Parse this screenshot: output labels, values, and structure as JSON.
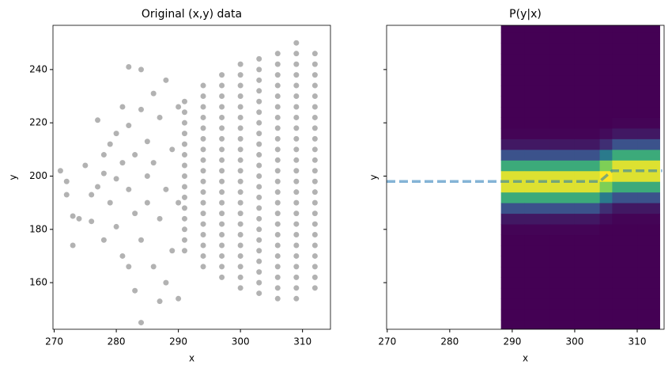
{
  "chart_data": [
    {
      "type": "scatter",
      "title": "Original (x,y) data",
      "x_label": "x",
      "y_label": "y",
      "color": "#000000",
      "alpha": 0.3,
      "xlim": [
        269.8,
        314.5
      ],
      "ylim": [
        142.5,
        256.6
      ],
      "xticks": [
        270,
        280,
        290,
        300,
        310
      ],
      "yticks": [
        160,
        180,
        200,
        220,
        240
      ],
      "x": [
        271,
        272,
        272,
        273,
        273,
        274,
        275,
        276,
        276,
        277,
        277,
        278,
        278,
        278,
        279,
        279,
        280,
        280,
        280,
        281,
        281,
        281,
        282,
        282,
        282,
        282,
        283,
        283,
        283,
        284,
        284,
        284,
        284,
        285,
        285,
        285,
        286,
        286,
        286,
        287,
        287,
        287,
        288,
        288,
        288,
        289,
        289,
        290,
        290,
        290,
        291,
        291,
        291,
        291,
        291,
        291,
        291,
        291,
        291,
        291,
        291,
        291,
        291,
        291,
        291,
        294,
        294,
        294,
        294,
        294,
        294,
        294,
        294,
        294,
        294,
        294,
        294,
        294,
        294,
        294,
        294,
        294,
        294,
        297,
        297,
        297,
        297,
        297,
        297,
        297,
        297,
        297,
        297,
        297,
        297,
        297,
        297,
        297,
        297,
        297,
        297,
        297,
        297,
        300,
        300,
        300,
        300,
        300,
        300,
        300,
        300,
        300,
        300,
        300,
        300,
        300,
        300,
        300,
        300,
        300,
        300,
        300,
        300,
        300,
        300,
        303,
        303,
        303,
        303,
        303,
        303,
        303,
        303,
        303,
        303,
        303,
        303,
        303,
        303,
        303,
        303,
        303,
        303,
        303,
        303,
        303,
        303,
        303,
        306,
        306,
        306,
        306,
        306,
        306,
        306,
        306,
        306,
        306,
        306,
        306,
        306,
        306,
        306,
        306,
        306,
        306,
        306,
        306,
        306,
        306,
        306,
        306,
        309,
        309,
        309,
        309,
        309,
        309,
        309,
        309,
        309,
        309,
        309,
        309,
        309,
        309,
        309,
        309,
        309,
        309,
        309,
        309,
        309,
        309,
        309,
        309,
        309,
        312,
        312,
        312,
        312,
        312,
        312,
        312,
        312,
        312,
        312,
        312,
        312,
        312,
        312,
        312,
        312,
        312,
        312,
        312,
        312,
        312,
        312,
        312
      ],
      "y": [
        202,
        198,
        193,
        185,
        174,
        184,
        204,
        193,
        183,
        196,
        221,
        208,
        201,
        176,
        190,
        212,
        199,
        216,
        181,
        226,
        205,
        170,
        241,
        219,
        195,
        166,
        157,
        208,
        186,
        145,
        240,
        225,
        176,
        200,
        213,
        190,
        166,
        231,
        205,
        153,
        222,
        184,
        160,
        195,
        236,
        172,
        210,
        154,
        226,
        190,
        172,
        176,
        180,
        184,
        188,
        192,
        196,
        200,
        204,
        208,
        212,
        216,
        220,
        224,
        228,
        166,
        170,
        174,
        178,
        182,
        186,
        190,
        194,
        198,
        202,
        206,
        210,
        214,
        218,
        222,
        226,
        230,
        234,
        162,
        166,
        170,
        174,
        178,
        182,
        186,
        190,
        194,
        198,
        202,
        206,
        210,
        214,
        218,
        222,
        226,
        230,
        234,
        238,
        158,
        162,
        166,
        170,
        174,
        178,
        182,
        186,
        190,
        194,
        198,
        202,
        206,
        210,
        214,
        218,
        222,
        226,
        230,
        234,
        238,
        242,
        156,
        160,
        164,
        168,
        172,
        176,
        180,
        184,
        188,
        192,
        196,
        200,
        204,
        208,
        212,
        216,
        220,
        224,
        228,
        232,
        236,
        240,
        244,
        154,
        158,
        162,
        166,
        170,
        174,
        178,
        182,
        186,
        190,
        194,
        198,
        202,
        206,
        210,
        214,
        218,
        222,
        226,
        230,
        234,
        238,
        242,
        246,
        154,
        158,
        162,
        166,
        170,
        174,
        178,
        182,
        186,
        190,
        194,
        198,
        202,
        206,
        210,
        214,
        218,
        222,
        226,
        230,
        234,
        238,
        242,
        246,
        250,
        158,
        162,
        166,
        170,
        174,
        178,
        182,
        186,
        190,
        194,
        198,
        202,
        206,
        210,
        214,
        218,
        222,
        226,
        230,
        234,
        238,
        242,
        246
      ]
    },
    {
      "type": "heatmap",
      "title": "P(y|x)",
      "x_label": "x",
      "y_label": "y",
      "colormap": "viridis",
      "show_ytick_labels": false,
      "xlim": [
        269.9,
        314.3
      ],
      "ylim": [
        142.5,
        256.6
      ],
      "xticks": [
        270,
        280,
        290,
        300,
        310
      ],
      "yticks": [
        160,
        180,
        200,
        220,
        240
      ],
      "x_edges": [
        288.2,
        292,
        296,
        300,
        304,
        306,
        310,
        313.6
      ],
      "y_edges": [
        142,
        146,
        150,
        154,
        158,
        162,
        166,
        170,
        174,
        178,
        182,
        186,
        190,
        194,
        198,
        202,
        206,
        210,
        214,
        218,
        222,
        226,
        230,
        234,
        238,
        242,
        246,
        250,
        254,
        258
      ],
      "z": [
        [
          0,
          0,
          0,
          0,
          0,
          0,
          0,
          0,
          0,
          0.01,
          0.07,
          0.25,
          0.61,
          0.95,
          0.95,
          0.61,
          0.25,
          0.07,
          0.01,
          0,
          0,
          0,
          0,
          0,
          0,
          0,
          0,
          0,
          0
        ],
        [
          0,
          0,
          0,
          0,
          0,
          0,
          0,
          0,
          0,
          0.01,
          0.07,
          0.25,
          0.61,
          0.95,
          0.95,
          0.61,
          0.25,
          0.07,
          0.01,
          0,
          0,
          0,
          0,
          0,
          0,
          0,
          0,
          0,
          0
        ],
        [
          0,
          0,
          0,
          0,
          0,
          0,
          0,
          0,
          0,
          0.01,
          0.07,
          0.25,
          0.61,
          0.95,
          0.95,
          0.61,
          0.25,
          0.07,
          0.01,
          0,
          0,
          0,
          0,
          0,
          0,
          0,
          0,
          0,
          0
        ],
        [
          0,
          0,
          0,
          0,
          0,
          0,
          0,
          0,
          0,
          0.01,
          0.07,
          0.25,
          0.61,
          0.95,
          0.95,
          0.61,
          0.25,
          0.07,
          0.01,
          0,
          0,
          0,
          0,
          0,
          0,
          0,
          0,
          0,
          0
        ],
        [
          0,
          0,
          0,
          0,
          0,
          0,
          0,
          0,
          0,
          0,
          0.03,
          0.14,
          0.41,
          0.8,
          1,
          0.8,
          0.41,
          0.14,
          0.03,
          0,
          0,
          0,
          0,
          0,
          0,
          0,
          0,
          0,
          0
        ],
        [
          0,
          0,
          0,
          0,
          0,
          0,
          0,
          0,
          0,
          0,
          0.01,
          0.07,
          0.25,
          0.61,
          0.95,
          0.95,
          0.61,
          0.25,
          0.07,
          0.01,
          0,
          0,
          0,
          0,
          0,
          0,
          0,
          0,
          0
        ],
        [
          0,
          0,
          0,
          0,
          0,
          0,
          0,
          0,
          0,
          0,
          0.01,
          0.07,
          0.25,
          0.61,
          0.95,
          0.95,
          0.61,
          0.25,
          0.07,
          0.01,
          0,
          0,
          0,
          0,
          0,
          0,
          0,
          0,
          0
        ]
      ],
      "line": {
        "x": [
          269.9,
          304,
          306,
          314
        ],
        "y": [
          198,
          198,
          202,
          202
        ],
        "color": "#1f77b4",
        "alpha": 0.55,
        "style": "dashed"
      }
    }
  ]
}
